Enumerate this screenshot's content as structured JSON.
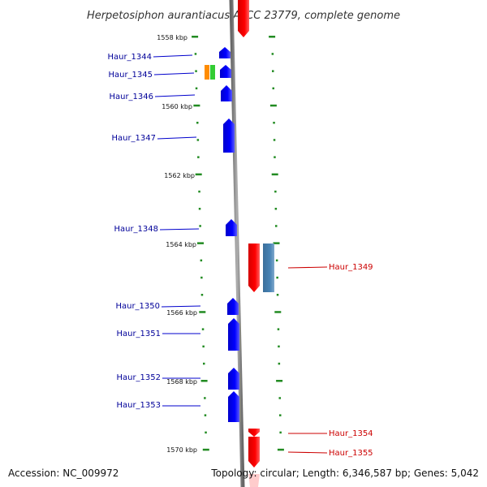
{
  "title": "Herpetosiphon aurantiacus ATCC 23779, complete genome",
  "footer": {
    "accession": "Accession: NC_009972",
    "topology": "Topology: circular; Length: 6,346,587 bp; Genes: 5,042"
  },
  "colors": {
    "forward_gene": "#0000ff",
    "reverse_gene": "#ff0000",
    "forward_label": "#000099",
    "reverse_label": "#cc0000",
    "tick": "#228b22",
    "backbone": "#888888",
    "cds_extra_orange": "#ff8c00",
    "cds_extra_green": "#33cc33",
    "reverse_feature_steelblue": "#4682b4"
  },
  "scale_labels": [
    "1558 kbp",
    "1560 kbp",
    "1562 kbp",
    "1564 kbp",
    "1566 kbp",
    "1568 kbp",
    "1570 kbp"
  ],
  "genes": {
    "left": [
      "Haur_1344",
      "Haur_1345",
      "Haur_1346",
      "Haur_1347",
      "Haur_1348",
      "Haur_1350",
      "Haur_1351",
      "Haur_1352",
      "Haur_1353"
    ],
    "right": [
      "Haur_1349",
      "Haur_1354",
      "Haur_1355"
    ]
  }
}
